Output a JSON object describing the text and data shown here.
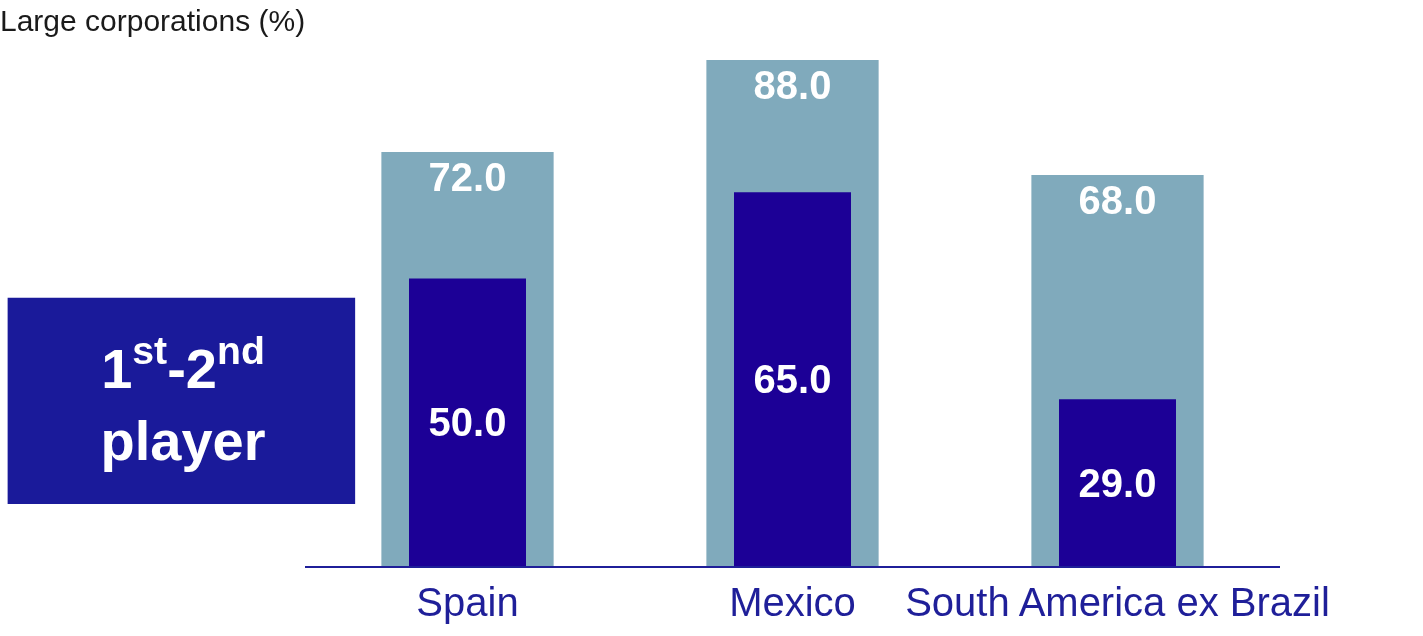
{
  "chart_data": {
    "type": "bar",
    "title": "Large corporations (%)",
    "categories": [
      "Spain",
      "Mexico",
      "South America ex Brazil"
    ],
    "series": [
      {
        "color": "#80aabc",
        "values": [
          72,
          88,
          68
        ],
        "value_labels": [
          "72.0",
          "88.0",
          "68.0"
        ]
      },
      {
        "color": "#1c0096",
        "values": [
          50,
          65,
          29
        ],
        "value_labels": [
          "50.0",
          "65.0",
          "29.0"
        ]
      }
    ],
    "annotations": [
      "1$^{st}$-2$^{nd}$ player"
    ]
  }
}
